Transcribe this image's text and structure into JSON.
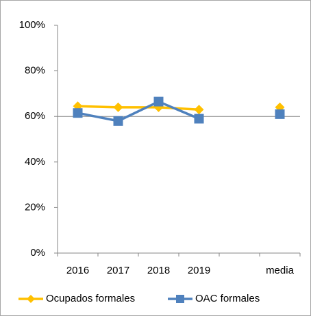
{
  "chart_data": {
    "type": "line",
    "categories": [
      "2016",
      "2017",
      "2018",
      "2019",
      null,
      "media"
    ],
    "series": [
      {
        "name": "Ocupados formales",
        "color": "#ffc000",
        "marker": "diamond",
        "values": [
          64.5,
          64,
          64,
          63,
          null,
          64
        ]
      },
      {
        "name": "OAC formales",
        "color": "#4f81bd",
        "marker": "square",
        "values": [
          61.5,
          58,
          66.5,
          59,
          null,
          61
        ]
      }
    ],
    "ylim": [
      0,
      100
    ],
    "yticks": [
      {
        "value": 0,
        "label": "0%"
      },
      {
        "value": 20,
        "label": "20%"
      },
      {
        "value": 40,
        "label": "40%"
      },
      {
        "value": 60,
        "label": "60%"
      },
      {
        "value": 80,
        "label": "80%"
      },
      {
        "value": 100,
        "label": "100%"
      }
    ],
    "reference_line": 60,
    "grid": false,
    "legend": "bottom"
  }
}
